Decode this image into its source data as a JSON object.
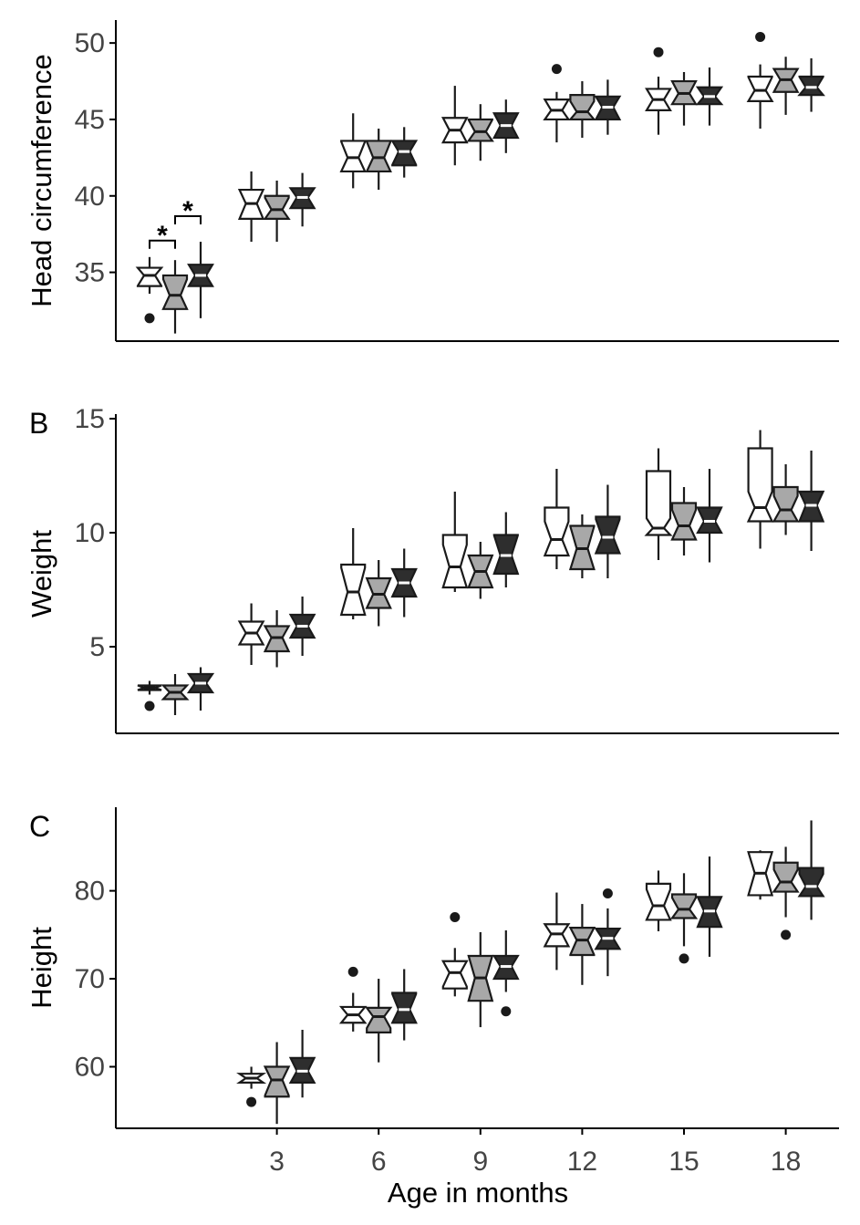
{
  "chart_data": [
    {
      "type": "box",
      "panel_label": "",
      "ylabel": "Head circumference",
      "xlabel": "",
      "ylim": [
        30.5,
        51.5
      ],
      "yticks": [
        35,
        40,
        45,
        50
      ],
      "x_ticks": [
        "3",
        "6",
        "9",
        "12",
        "15",
        "18"
      ],
      "group_fills": [
        "#ffffff",
        "#a8a8a8",
        "#2e2e2e"
      ],
      "groups": [
        {
          "age": 0,
          "boxes": [
            {
              "wlo": 33.6,
              "q1": 34.1,
              "med": 34.8,
              "q3": 35.3,
              "whi": 36.0,
              "outliers": [
                32.0
              ]
            },
            {
              "wlo": 31.0,
              "q1": 32.6,
              "med": 33.5,
              "q3": 34.8,
              "whi": 35.8,
              "outliers": []
            },
            {
              "wlo": 32.0,
              "q1": 34.1,
              "med": 34.8,
              "q3": 35.5,
              "whi": 37.0,
              "outliers": []
            }
          ]
        },
        {
          "age": 3,
          "boxes": [
            {
              "wlo": 37.0,
              "q1": 38.5,
              "med": 39.5,
              "q3": 40.4,
              "whi": 41.6,
              "outliers": []
            },
            {
              "wlo": 37.0,
              "q1": 38.5,
              "med": 39.1,
              "q3": 40.0,
              "whi": 41.0,
              "outliers": []
            },
            {
              "wlo": 38.0,
              "q1": 39.2,
              "med": 39.9,
              "q3": 40.5,
              "whi": 41.5,
              "outliers": []
            }
          ]
        },
        {
          "age": 6,
          "boxes": [
            {
              "wlo": 40.5,
              "q1": 41.6,
              "med": 42.5,
              "q3": 43.6,
              "whi": 45.4,
              "outliers": []
            },
            {
              "wlo": 40.4,
              "q1": 41.6,
              "med": 42.5,
              "q3": 43.6,
              "whi": 44.4,
              "outliers": []
            },
            {
              "wlo": 41.2,
              "q1": 42.0,
              "med": 42.9,
              "q3": 43.6,
              "whi": 44.5,
              "outliers": []
            }
          ]
        },
        {
          "age": 9,
          "boxes": [
            {
              "wlo": 42.0,
              "q1": 43.5,
              "med": 44.3,
              "q3": 45.1,
              "whi": 47.2,
              "outliers": []
            },
            {
              "wlo": 42.3,
              "q1": 43.6,
              "med": 44.2,
              "q3": 45.0,
              "whi": 46.0,
              "outliers": []
            },
            {
              "wlo": 42.8,
              "q1": 43.8,
              "med": 44.6,
              "q3": 45.4,
              "whi": 46.3,
              "outliers": []
            }
          ]
        },
        {
          "age": 12,
          "boxes": [
            {
              "wlo": 43.5,
              "q1": 45.0,
              "med": 45.6,
              "q3": 46.3,
              "whi": 46.8,
              "outliers": [
                48.3
              ]
            },
            {
              "wlo": 43.8,
              "q1": 45.0,
              "med": 45.5,
              "q3": 46.6,
              "whi": 47.5,
              "outliers": []
            },
            {
              "wlo": 44.0,
              "q1": 45.0,
              "med": 45.8,
              "q3": 46.5,
              "whi": 47.6,
              "outliers": []
            }
          ]
        },
        {
          "age": 15,
          "boxes": [
            {
              "wlo": 44.0,
              "q1": 45.6,
              "med": 46.3,
              "q3": 47.0,
              "whi": 47.8,
              "outliers": [
                49.4
              ]
            },
            {
              "wlo": 44.6,
              "q1": 46.0,
              "med": 46.7,
              "q3": 47.5,
              "whi": 48.1,
              "outliers": []
            },
            {
              "wlo": 44.6,
              "q1": 46.0,
              "med": 46.5,
              "q3": 47.1,
              "whi": 48.4,
              "outliers": []
            }
          ]
        },
        {
          "age": 18,
          "boxes": [
            {
              "wlo": 44.4,
              "q1": 46.2,
              "med": 46.9,
              "q3": 47.8,
              "whi": 48.6,
              "outliers": [
                50.4
              ]
            },
            {
              "wlo": 45.3,
              "q1": 46.8,
              "med": 47.6,
              "q3": 48.3,
              "whi": 49.1,
              "outliers": []
            },
            {
              "wlo": 45.5,
              "q1": 46.6,
              "med": 47.1,
              "q3": 47.8,
              "whi": 49.0,
              "outliers": []
            }
          ]
        }
      ],
      "significance": [
        {
          "from": 0,
          "to": 1,
          "label": "*"
        },
        {
          "from": 1,
          "to": 2,
          "label": "*"
        }
      ]
    },
    {
      "type": "box",
      "panel_label": "B",
      "ylabel": "Weight",
      "xlabel": "",
      "ylim": [
        1.2,
        15.2
      ],
      "yticks": [
        5,
        10,
        15
      ],
      "x_ticks": [
        "3",
        "6",
        "9",
        "12",
        "15",
        "18"
      ],
      "group_fills": [
        "#ffffff",
        "#a8a8a8",
        "#2e2e2e"
      ],
      "groups": [
        {
          "age": 0,
          "boxes": [
            {
              "wlo": 2.9,
              "q1": 3.1,
              "med": 3.2,
              "q3": 3.3,
              "whi": 3.5,
              "outliers": [
                2.4
              ]
            },
            {
              "wlo": 2.0,
              "q1": 2.7,
              "med": 3.0,
              "q3": 3.3,
              "whi": 3.8,
              "outliers": []
            },
            {
              "wlo": 2.2,
              "q1": 3.0,
              "med": 3.4,
              "q3": 3.8,
              "whi": 4.1,
              "outliers": []
            }
          ]
        },
        {
          "age": 3,
          "boxes": [
            {
              "wlo": 4.2,
              "q1": 5.1,
              "med": 5.6,
              "q3": 6.1,
              "whi": 6.9,
              "outliers": []
            },
            {
              "wlo": 4.1,
              "q1": 4.8,
              "med": 5.4,
              "q3": 5.9,
              "whi": 6.6,
              "outliers": []
            },
            {
              "wlo": 4.6,
              "q1": 5.4,
              "med": 5.9,
              "q3": 6.4,
              "whi": 7.2,
              "outliers": []
            }
          ]
        },
        {
          "age": 6,
          "boxes": [
            {
              "wlo": 6.2,
              "q1": 6.4,
              "med": 7.4,
              "q3": 8.6,
              "whi": 10.2,
              "outliers": []
            },
            {
              "wlo": 5.9,
              "q1": 6.7,
              "med": 7.3,
              "q3": 8.0,
              "whi": 8.8,
              "outliers": []
            },
            {
              "wlo": 6.3,
              "q1": 7.2,
              "med": 7.8,
              "q3": 8.4,
              "whi": 9.3,
              "outliers": []
            }
          ]
        },
        {
          "age": 9,
          "boxes": [
            {
              "wlo": 7.4,
              "q1": 7.6,
              "med": 8.5,
              "q3": 9.9,
              "whi": 11.8,
              "outliers": []
            },
            {
              "wlo": 7.1,
              "q1": 7.6,
              "med": 8.3,
              "q3": 9.0,
              "whi": 9.6,
              "outliers": []
            },
            {
              "wlo": 7.6,
              "q1": 8.2,
              "med": 9.0,
              "q3": 9.9,
              "whi": 10.9,
              "outliers": []
            }
          ]
        },
        {
          "age": 12,
          "boxes": [
            {
              "wlo": 8.4,
              "q1": 9.0,
              "med": 9.7,
              "q3": 11.1,
              "whi": 12.8,
              "outliers": []
            },
            {
              "wlo": 8.0,
              "q1": 8.4,
              "med": 9.3,
              "q3": 10.3,
              "whi": 10.8,
              "outliers": []
            },
            {
              "wlo": 8.0,
              "q1": 9.1,
              "med": 9.8,
              "q3": 10.7,
              "whi": 12.1,
              "outliers": []
            }
          ]
        },
        {
          "age": 15,
          "boxes": [
            {
              "wlo": 8.8,
              "q1": 9.9,
              "med": 10.2,
              "q3": 12.7,
              "whi": 13.7,
              "outliers": []
            },
            {
              "wlo": 9.0,
              "q1": 9.7,
              "med": 10.3,
              "q3": 11.3,
              "whi": 12.0,
              "outliers": []
            },
            {
              "wlo": 8.7,
              "q1": 10.0,
              "med": 10.5,
              "q3": 11.1,
              "whi": 12.8,
              "outliers": []
            }
          ]
        },
        {
          "age": 18,
          "boxes": [
            {
              "wlo": 9.3,
              "q1": 10.5,
              "med": 11.1,
              "q3": 13.7,
              "whi": 14.5,
              "outliers": []
            },
            {
              "wlo": 9.9,
              "q1": 10.5,
              "med": 11.0,
              "q3": 12.0,
              "whi": 13.0,
              "outliers": []
            },
            {
              "wlo": 9.2,
              "q1": 10.5,
              "med": 11.2,
              "q3": 11.8,
              "whi": 13.6,
              "outliers": []
            }
          ]
        }
      ],
      "significance": []
    },
    {
      "type": "box",
      "panel_label": "C",
      "ylabel": "Height",
      "xlabel": "Age in months",
      "ylim": [
        53.0,
        89.5
      ],
      "yticks": [
        60,
        70,
        80
      ],
      "x_ticks": [
        "3",
        "6",
        "9",
        "12",
        "15",
        "18"
      ],
      "group_fills": [
        "#ffffff",
        "#a8a8a8",
        "#2e2e2e"
      ],
      "groups": [
        {
          "age": 3,
          "boxes": [
            {
              "wlo": 57.5,
              "q1": 58.2,
              "med": 58.7,
              "q3": 59.2,
              "whi": 60.0,
              "outliers": [
                56.0
              ]
            },
            {
              "wlo": 53.5,
              "q1": 56.6,
              "med": 58.5,
              "q3": 60.0,
              "whi": 62.8,
              "outliers": []
            },
            {
              "wlo": 56.5,
              "q1": 58.2,
              "med": 59.5,
              "q3": 61.0,
              "whi": 64.2,
              "outliers": []
            }
          ]
        },
        {
          "age": 6,
          "boxes": [
            {
              "wlo": 64.0,
              "q1": 65.0,
              "med": 65.9,
              "q3": 66.8,
              "whi": 68.4,
              "outliers": [
                70.8
              ]
            },
            {
              "wlo": 60.5,
              "q1": 63.9,
              "med": 65.7,
              "q3": 66.7,
              "whi": 70.0,
              "outliers": []
            },
            {
              "wlo": 63.0,
              "q1": 65.0,
              "med": 66.5,
              "q3": 68.4,
              "whi": 71.1,
              "outliers": []
            }
          ]
        },
        {
          "age": 9,
          "boxes": [
            {
              "wlo": 68.0,
              "q1": 68.9,
              "med": 70.7,
              "q3": 72.0,
              "whi": 73.5,
              "outliers": [
                77.0
              ]
            },
            {
              "wlo": 64.5,
              "q1": 67.5,
              "med": 70.1,
              "q3": 72.6,
              "whi": 75.3,
              "outliers": []
            },
            {
              "wlo": 68.5,
              "q1": 70.0,
              "med": 71.4,
              "q3": 72.6,
              "whi": 75.5,
              "outliers": [
                66.3
              ]
            }
          ]
        },
        {
          "age": 12,
          "boxes": [
            {
              "wlo": 71.0,
              "q1": 73.7,
              "med": 75.1,
              "q3": 76.2,
              "whi": 79.8,
              "outliers": []
            },
            {
              "wlo": 69.3,
              "q1": 72.7,
              "med": 74.4,
              "q3": 75.8,
              "whi": 78.5,
              "outliers": []
            },
            {
              "wlo": 70.3,
              "q1": 73.4,
              "med": 74.6,
              "q3": 75.7,
              "whi": 78.0,
              "outliers": [
                79.7
              ]
            }
          ]
        },
        {
          "age": 15,
          "boxes": [
            {
              "wlo": 75.4,
              "q1": 76.7,
              "med": 78.3,
              "q3": 80.8,
              "whi": 82.3,
              "outliers": []
            },
            {
              "wlo": 73.7,
              "q1": 76.9,
              "med": 77.9,
              "q3": 79.6,
              "whi": 82.0,
              "outliers": [
                72.3
              ]
            },
            {
              "wlo": 72.5,
              "q1": 75.9,
              "med": 77.7,
              "q3": 79.3,
              "whi": 83.9,
              "outliers": []
            }
          ]
        },
        {
          "age": 18,
          "boxes": [
            {
              "wlo": 79.0,
              "q1": 79.5,
              "med": 82.0,
              "q3": 84.4,
              "whi": 84.6,
              "outliers": []
            },
            {
              "wlo": 77.0,
              "q1": 79.9,
              "med": 81.0,
              "q3": 83.2,
              "whi": 85.0,
              "outliers": [
                75.0
              ]
            },
            {
              "wlo": 76.7,
              "q1": 79.4,
              "med": 80.5,
              "q3": 82.6,
              "whi": 88.0,
              "outliers": []
            }
          ]
        }
      ],
      "significance": []
    }
  ]
}
